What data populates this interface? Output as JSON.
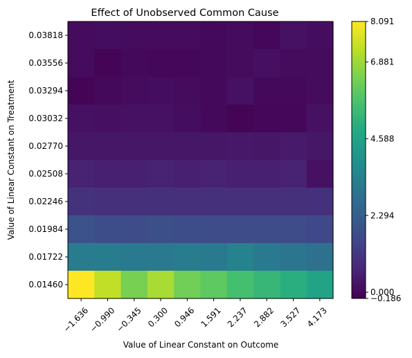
{
  "chart_data": {
    "type": "heatmap",
    "title": "Effect of Unobserved Common Cause",
    "xlabel": "Value of Linear Constant on Outcome",
    "ylabel": "Value of Linear Constant on Treatment",
    "x_ticks": [
      "−1.636",
      "−0.990",
      "−0.345",
      "0.300",
      "0.946",
      "1.591",
      "2.237",
      "2.882",
      "3.527",
      "4.173"
    ],
    "y_ticks_top_to_bottom": [
      "0.03818",
      "0.03556",
      "0.03294",
      "0.03032",
      "0.02770",
      "0.02508",
      "0.02246",
      "0.01984",
      "0.01722",
      "0.01460"
    ],
    "values_top_to_bottom": [
      [
        0.05,
        0.1,
        0.05,
        0.05,
        0.05,
        0.0,
        0.05,
        -0.05,
        0.2,
        0.1
      ],
      [
        0.05,
        -0.1,
        0.0,
        -0.05,
        -0.05,
        0.0,
        0.05,
        0.15,
        0.05,
        0.05
      ],
      [
        -0.1,
        0.0,
        0.05,
        0.1,
        0.05,
        0.0,
        0.2,
        0.0,
        0.0,
        0.05
      ],
      [
        0.2,
        0.15,
        0.2,
        0.2,
        0.1,
        0.0,
        -0.1,
        -0.05,
        -0.05,
        0.2
      ],
      [
        0.3,
        0.3,
        0.3,
        0.3,
        0.3,
        0.3,
        0.35,
        0.3,
        0.4,
        0.3
      ],
      [
        0.6,
        0.55,
        0.55,
        0.6,
        0.55,
        0.6,
        0.55,
        0.55,
        0.6,
        0.2
      ],
      [
        1.0,
        0.95,
        0.95,
        0.95,
        0.95,
        0.95,
        0.95,
        0.95,
        0.95,
        0.95
      ],
      [
        1.9,
        1.75,
        1.7,
        1.8,
        1.75,
        1.7,
        1.7,
        1.7,
        1.7,
        1.6
      ],
      [
        3.25,
        3.25,
        3.2,
        3.15,
        3.25,
        3.2,
        3.45,
        3.2,
        3.05,
        2.9
      ],
      [
        8.09,
        7.3,
        6.4,
        7.0,
        6.3,
        6.0,
        5.6,
        5.3,
        5.0,
        4.6
      ]
    ],
    "colormap": "viridis",
    "vmin": -0.186,
    "vmax": 8.091,
    "colorbar_ticks": [
      "8.091",
      "6.881",
      "4.588",
      "2.294",
      "0.000",
      "−0.186"
    ],
    "colorbar_tick_values": [
      8.091,
      6.881,
      4.588,
      2.294,
      0.0,
      -0.186
    ]
  }
}
